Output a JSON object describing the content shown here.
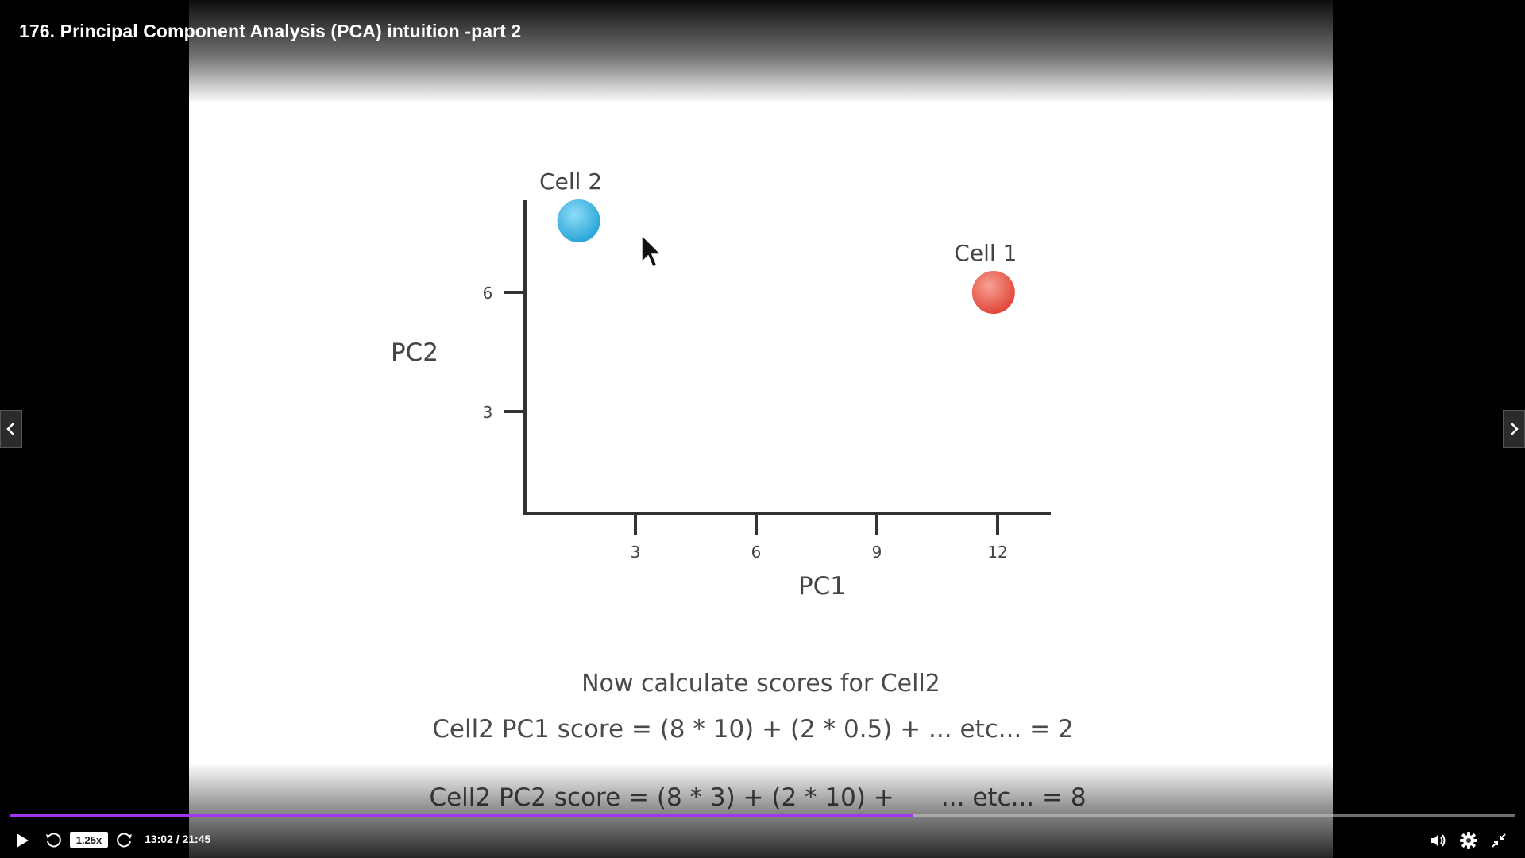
{
  "player": {
    "title": "176. Principal Component Analysis (PCA) intuition -part 2",
    "speed": "1.25x",
    "current_time": "13:02",
    "time_separator": " / ",
    "duration": "21:45",
    "progress": 0.5999,
    "accent_color": "#a435f0"
  },
  "slide": {
    "heading": "Now calculate scores for Cell2",
    "line1": "Cell2 PC1 score = (8 * 10) + (2 * 0.5) + ... etc... = 2",
    "line2": "Cell2 PC2 score = (8 * 3) + (2 * 10) +      ... etc... = 8"
  },
  "chart_data": {
    "type": "scatter",
    "xlabel": "PC1",
    "ylabel": "PC2",
    "x_ticks": [
      "3",
      "6",
      "9",
      "12"
    ],
    "y_ticks": [
      "3",
      "6"
    ],
    "points": [
      {
        "label": "Cell 2",
        "x": 1.6,
        "y": 7.8,
        "color": "#3ab4e3"
      },
      {
        "label": "Cell 1",
        "x": 11.9,
        "y": 6.0,
        "color": "#e85a4f"
      }
    ]
  },
  "icons": {
    "prev": "chevron-left-icon",
    "next": "chevron-right-icon",
    "play": "play-icon",
    "rewind": "rewind-5-icon",
    "forward": "forward-5-icon",
    "volume": "volume-icon",
    "settings": "gear-icon",
    "exit_fullscreen": "exit-fullscreen-icon"
  }
}
